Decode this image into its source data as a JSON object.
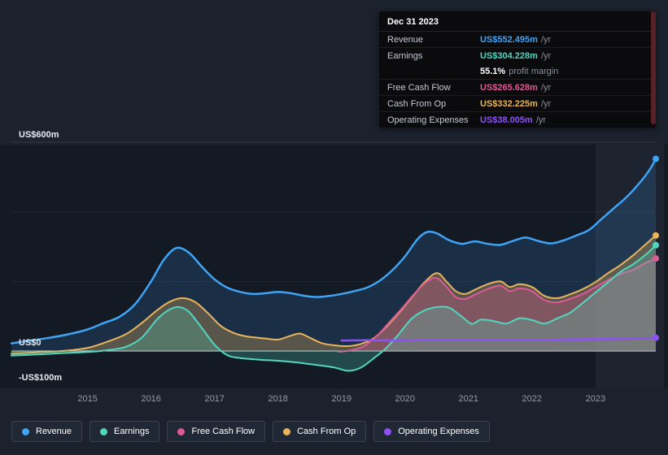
{
  "tooltip": {
    "date": "Dec 31 2023",
    "rows": [
      {
        "id": "revenue",
        "label": "Revenue",
        "value": "US$552.495m",
        "suffix": "/yr",
        "color": "#3fa4f6"
      },
      {
        "id": "earnings",
        "label": "Earnings",
        "value": "US$304.228m",
        "suffix": "/yr",
        "color": "#52d6c0"
      },
      {
        "id": "profit-margin",
        "label": "",
        "value": "55.1%",
        "suffix": "profit margin",
        "color": "#ffffff",
        "no_border": true
      },
      {
        "id": "free-cash-flow",
        "label": "Free Cash Flow",
        "value": "US$265.628m",
        "suffix": "/yr",
        "color": "#dd5a96"
      },
      {
        "id": "cash-from-op",
        "label": "Cash From Op",
        "value": "US$332.225m",
        "suffix": "/yr",
        "color": "#e9b45b"
      },
      {
        "id": "operating-expenses",
        "label": "Operating Expenses",
        "value": "US$38.005m",
        "suffix": "/yr",
        "color": "#8c52f5"
      }
    ]
  },
  "axes": {
    "y_labels": [
      "US$600m",
      "US$0",
      "-US$100m"
    ],
    "x_labels": [
      "2015",
      "2016",
      "2017",
      "2018",
      "2019",
      "2020",
      "2021",
      "2022",
      "2023"
    ]
  },
  "legend": {
    "items": [
      {
        "id": "revenue",
        "label": "Revenue",
        "color": "#3fa4f6"
      },
      {
        "id": "earnings",
        "label": "Earnings",
        "color": "#52d6c0"
      },
      {
        "id": "free-cash-flow",
        "label": "Free Cash Flow",
        "color": "#dd5a96"
      },
      {
        "id": "cash-from-op",
        "label": "Cash From Op",
        "color": "#e9b45b"
      },
      {
        "id": "operating-expenses",
        "label": "Operating Expenses",
        "color": "#8c52f5"
      }
    ]
  },
  "chart_data": {
    "type": "area",
    "title": "Revenue & Expenses history (US$m)",
    "ylim": [
      -100,
      600
    ],
    "x_range": [
      2013.8,
      2023.95
    ],
    "gridline_values": [
      600,
      400,
      200,
      0
    ],
    "highlight_from_year": 2023.0,
    "series": [
      {
        "name": "Revenue",
        "color": "#3fa4f6",
        "width": 2.5,
        "fill_opacity": 0.16,
        "points": [
          [
            2013.8,
            22
          ],
          [
            2014.1,
            30
          ],
          [
            2014.4,
            38
          ],
          [
            2014.7,
            48
          ],
          [
            2015.0,
            62
          ],
          [
            2015.25,
            80
          ],
          [
            2015.5,
            98
          ],
          [
            2015.75,
            135
          ],
          [
            2016.0,
            200
          ],
          [
            2016.2,
            262
          ],
          [
            2016.4,
            296
          ],
          [
            2016.6,
            282
          ],
          [
            2016.8,
            242
          ],
          [
            2017.0,
            206
          ],
          [
            2017.2,
            182
          ],
          [
            2017.4,
            170
          ],
          [
            2017.6,
            164
          ],
          [
            2017.8,
            166
          ],
          [
            2018.0,
            170
          ],
          [
            2018.2,
            166
          ],
          [
            2018.4,
            159
          ],
          [
            2018.6,
            155
          ],
          [
            2018.8,
            158
          ],
          [
            2019.0,
            164
          ],
          [
            2019.2,
            172
          ],
          [
            2019.4,
            182
          ],
          [
            2019.6,
            202
          ],
          [
            2019.8,
            232
          ],
          [
            2020.0,
            272
          ],
          [
            2020.2,
            322
          ],
          [
            2020.35,
            342
          ],
          [
            2020.5,
            338
          ],
          [
            2020.7,
            318
          ],
          [
            2020.9,
            308
          ],
          [
            2021.1,
            315
          ],
          [
            2021.3,
            308
          ],
          [
            2021.5,
            305
          ],
          [
            2021.7,
            316
          ],
          [
            2021.9,
            326
          ],
          [
            2022.1,
            316
          ],
          [
            2022.3,
            309
          ],
          [
            2022.5,
            318
          ],
          [
            2022.7,
            332
          ],
          [
            2022.9,
            348
          ],
          [
            2023.1,
            380
          ],
          [
            2023.3,
            412
          ],
          [
            2023.5,
            444
          ],
          [
            2023.7,
            484
          ],
          [
            2023.85,
            520
          ],
          [
            2023.95,
            552
          ]
        ]
      },
      {
        "name": "Cash From Op",
        "color": "#e9b45b",
        "width": 2,
        "fill_opacity": 0.3,
        "points": [
          [
            2013.8,
            -8
          ],
          [
            2014.2,
            -4
          ],
          [
            2014.6,
            0
          ],
          [
            2015.0,
            9
          ],
          [
            2015.3,
            26
          ],
          [
            2015.6,
            48
          ],
          [
            2015.85,
            80
          ],
          [
            2016.1,
            118
          ],
          [
            2016.3,
            142
          ],
          [
            2016.5,
            152
          ],
          [
            2016.7,
            140
          ],
          [
            2016.9,
            108
          ],
          [
            2017.1,
            72
          ],
          [
            2017.3,
            52
          ],
          [
            2017.5,
            42
          ],
          [
            2017.8,
            36
          ],
          [
            2018.0,
            33
          ],
          [
            2018.2,
            44
          ],
          [
            2018.35,
            50
          ],
          [
            2018.5,
            38
          ],
          [
            2018.7,
            22
          ],
          [
            2018.9,
            16
          ],
          [
            2019.1,
            14
          ],
          [
            2019.3,
            20
          ],
          [
            2019.5,
            36
          ],
          [
            2019.7,
            68
          ],
          [
            2019.9,
            108
          ],
          [
            2020.1,
            152
          ],
          [
            2020.3,
            196
          ],
          [
            2020.5,
            224
          ],
          [
            2020.65,
            200
          ],
          [
            2020.8,
            172
          ],
          [
            2020.95,
            164
          ],
          [
            2021.1,
            176
          ],
          [
            2021.3,
            192
          ],
          [
            2021.5,
            200
          ],
          [
            2021.65,
            184
          ],
          [
            2021.8,
            192
          ],
          [
            2022.0,
            184
          ],
          [
            2022.2,
            158
          ],
          [
            2022.4,
            152
          ],
          [
            2022.6,
            163
          ],
          [
            2022.8,
            178
          ],
          [
            2023.0,
            198
          ],
          [
            2023.2,
            224
          ],
          [
            2023.4,
            248
          ],
          [
            2023.6,
            276
          ],
          [
            2023.8,
            308
          ],
          [
            2023.95,
            332
          ]
        ]
      },
      {
        "name": "Free Cash Flow",
        "color": "#dd5a96",
        "width": 2,
        "fill_opacity": 0.3,
        "points": [
          [
            2018.95,
            -2
          ],
          [
            2019.15,
            2
          ],
          [
            2019.35,
            14
          ],
          [
            2019.55,
            42
          ],
          [
            2019.75,
            82
          ],
          [
            2019.95,
            122
          ],
          [
            2020.15,
            165
          ],
          [
            2020.35,
            200
          ],
          [
            2020.5,
            210
          ],
          [
            2020.65,
            185
          ],
          [
            2020.8,
            155
          ],
          [
            2020.95,
            150
          ],
          [
            2021.1,
            162
          ],
          [
            2021.3,
            178
          ],
          [
            2021.5,
            188
          ],
          [
            2021.65,
            172
          ],
          [
            2021.8,
            180
          ],
          [
            2022.0,
            172
          ],
          [
            2022.2,
            146
          ],
          [
            2022.4,
            140
          ],
          [
            2022.6,
            150
          ],
          [
            2022.8,
            164
          ],
          [
            2023.0,
            184
          ],
          [
            2023.2,
            204
          ],
          [
            2023.4,
            222
          ],
          [
            2023.6,
            234
          ],
          [
            2023.8,
            254
          ],
          [
            2023.95,
            266
          ]
        ]
      },
      {
        "name": "Earnings",
        "color": "#52d6c0",
        "width": 2,
        "fill_opacity": 0.25,
        "points": [
          [
            2013.8,
            -13
          ],
          [
            2014.2,
            -10
          ],
          [
            2014.6,
            -6
          ],
          [
            2015.0,
            -3
          ],
          [
            2015.3,
            2
          ],
          [
            2015.6,
            12
          ],
          [
            2015.85,
            38
          ],
          [
            2016.1,
            92
          ],
          [
            2016.3,
            120
          ],
          [
            2016.45,
            126
          ],
          [
            2016.6,
            112
          ],
          [
            2016.8,
            66
          ],
          [
            2017.0,
            18
          ],
          [
            2017.2,
            -12
          ],
          [
            2017.4,
            -20
          ],
          [
            2017.7,
            -25
          ],
          [
            2018.0,
            -28
          ],
          [
            2018.3,
            -33
          ],
          [
            2018.6,
            -40
          ],
          [
            2018.9,
            -48
          ],
          [
            2019.1,
            -57
          ],
          [
            2019.3,
            -48
          ],
          [
            2019.5,
            -22
          ],
          [
            2019.7,
            8
          ],
          [
            2019.9,
            48
          ],
          [
            2020.1,
            92
          ],
          [
            2020.3,
            116
          ],
          [
            2020.5,
            126
          ],
          [
            2020.7,
            124
          ],
          [
            2020.9,
            98
          ],
          [
            2021.05,
            78
          ],
          [
            2021.2,
            90
          ],
          [
            2021.4,
            86
          ],
          [
            2021.6,
            79
          ],
          [
            2021.8,
            94
          ],
          [
            2022.0,
            89
          ],
          [
            2022.2,
            79
          ],
          [
            2022.4,
            94
          ],
          [
            2022.6,
            110
          ],
          [
            2022.8,
            138
          ],
          [
            2023.0,
            168
          ],
          [
            2023.2,
            198
          ],
          [
            2023.4,
            228
          ],
          [
            2023.6,
            250
          ],
          [
            2023.8,
            278
          ],
          [
            2023.95,
            304
          ]
        ]
      },
      {
        "name": "Operating Expenses",
        "color": "#8c52f5",
        "width": 2.5,
        "fill_opacity": 0,
        "points": [
          [
            2019.0,
            30
          ],
          [
            2019.4,
            31
          ],
          [
            2019.8,
            30
          ],
          [
            2020.2,
            31
          ],
          [
            2020.6,
            31
          ],
          [
            2021.0,
            32
          ],
          [
            2021.4,
            31
          ],
          [
            2021.8,
            32
          ],
          [
            2022.2,
            32
          ],
          [
            2022.6,
            33
          ],
          [
            2023.0,
            34
          ],
          [
            2023.4,
            35
          ],
          [
            2023.7,
            36
          ],
          [
            2023.95,
            38
          ]
        ]
      }
    ]
  }
}
